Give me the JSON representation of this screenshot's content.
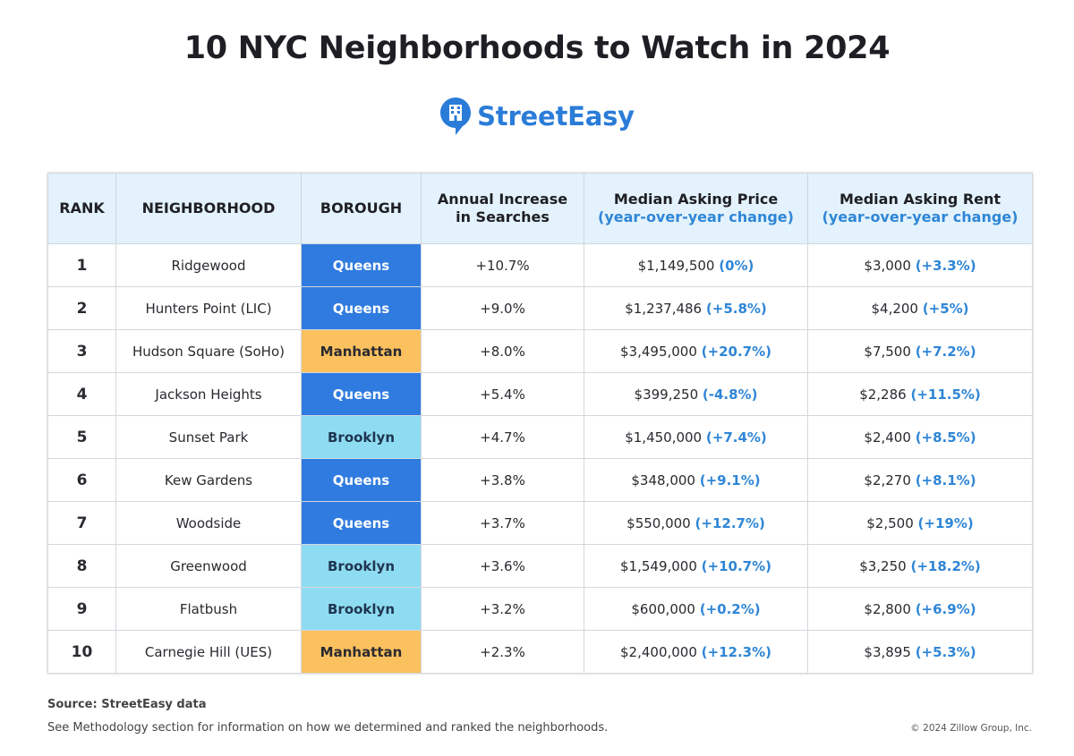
{
  "title": "10 NYC Neighborhoods to Watch in 2024",
  "logo": {
    "text": "StreetEasy",
    "icon": "building-pin-icon",
    "color": "#2a7cd8"
  },
  "colors": {
    "header_bg": "#e3f2fc",
    "accent": "#2f86d6",
    "queens": "#2f7be0",
    "manhattan": "#fbc15f",
    "brooklyn": "#8edcf2"
  },
  "table": {
    "headers": {
      "rank": "RANK",
      "neighborhood": "NEIGHBORHOOD",
      "borough": "BOROUGH",
      "searches_line1": "Annual Increase",
      "searches_line2": "in Searches",
      "price_line1": "Median Asking Price",
      "price_line2": "(year-over-year change)",
      "rent_line1": "Median Asking Rent",
      "rent_line2": "(year-over-year change)"
    },
    "rows": [
      {
        "rank": "1",
        "neighborhood": "Ridgewood",
        "borough": "Queens",
        "searches": "+10.7%",
        "price": "$1,149,500",
        "price_change": "(0%)",
        "rent": "$3,000",
        "rent_change": "(+3.3%)"
      },
      {
        "rank": "2",
        "neighborhood": "Hunters Point (LIC)",
        "borough": "Queens",
        "searches": "+9.0%",
        "price": "$1,237,486",
        "price_change": "(+5.8%)",
        "rent": "$4,200",
        "rent_change": "(+5%)"
      },
      {
        "rank": "3",
        "neighborhood": "Hudson Square (SoHo)",
        "borough": "Manhattan",
        "searches": "+8.0%",
        "price": "$3,495,000",
        "price_change": "(+20.7%)",
        "rent": "$7,500",
        "rent_change": "(+7.2%)"
      },
      {
        "rank": "4",
        "neighborhood": "Jackson Heights",
        "borough": "Queens",
        "searches": "+5.4%",
        "price": "$399,250",
        "price_change": "(-4.8%)",
        "rent": "$2,286",
        "rent_change": "(+11.5%)"
      },
      {
        "rank": "5",
        "neighborhood": "Sunset Park",
        "borough": "Brooklyn",
        "searches": "+4.7%",
        "price": "$1,450,000",
        "price_change": "(+7.4%)",
        "rent": "$2,400",
        "rent_change": "(+8.5%)"
      },
      {
        "rank": "6",
        "neighborhood": "Kew Gardens",
        "borough": "Queens",
        "searches": "+3.8%",
        "price": "$348,000",
        "price_change": "(+9.1%)",
        "rent": "$2,270",
        "rent_change": "(+8.1%)"
      },
      {
        "rank": "7",
        "neighborhood": "Woodside",
        "borough": "Queens",
        "searches": "+3.7%",
        "price": "$550,000",
        "price_change": "(+12.7%)",
        "rent": "$2,500",
        "rent_change": "(+19%)"
      },
      {
        "rank": "8",
        "neighborhood": "Greenwood",
        "borough": "Brooklyn",
        "searches": "+3.6%",
        "price": "$1,549,000",
        "price_change": "(+10.7%)",
        "rent": "$3,250",
        "rent_change": "(+18.2%)"
      },
      {
        "rank": "9",
        "neighborhood": "Flatbush",
        "borough": "Brooklyn",
        "searches": "+3.2%",
        "price": "$600,000",
        "price_change": "(+0.2%)",
        "rent": "$2,800",
        "rent_change": "(+6.9%)"
      },
      {
        "rank": "10",
        "neighborhood": "Carnegie Hill (UES)",
        "borough": "Manhattan",
        "searches": "+2.3%",
        "price": "$2,400,000",
        "price_change": "(+12.3%)",
        "rent": "$3,895",
        "rent_change": "(+5.3%)"
      }
    ]
  },
  "footer": {
    "source": "Source: StreetEasy data",
    "methodology": "See Methodology section for information on how we determined and ranked the neighborhoods.",
    "copyright": "© 2024 Zillow Group, Inc."
  }
}
